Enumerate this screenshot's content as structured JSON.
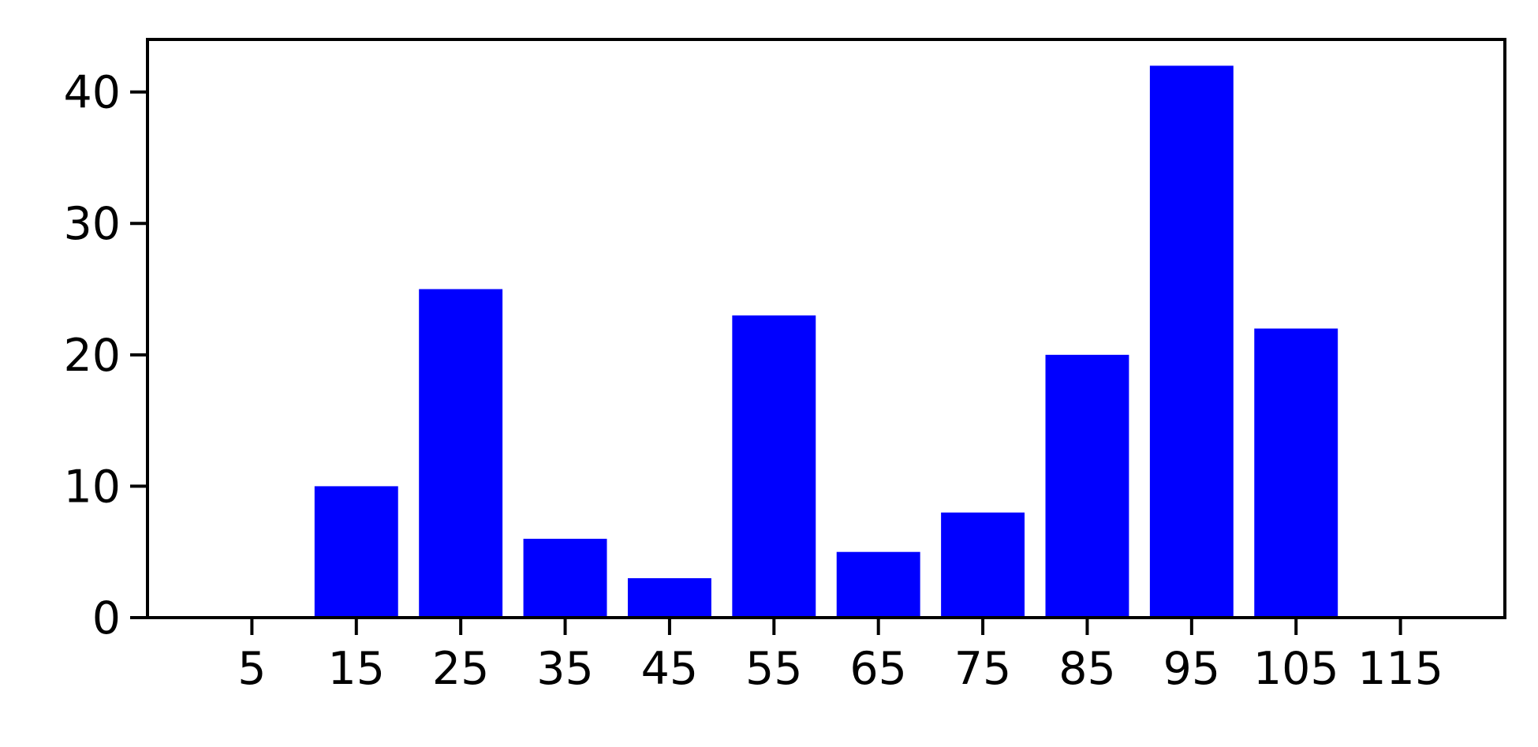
{
  "chart_data": {
    "type": "bar",
    "categories": [
      "5",
      "15",
      "25",
      "35",
      "45",
      "55",
      "65",
      "75",
      "85",
      "95",
      "105",
      "115"
    ],
    "values": [
      0,
      10,
      25,
      6,
      3,
      23,
      5,
      8,
      20,
      42,
      22,
      0
    ],
    "title": "",
    "xlabel": "",
    "ylabel": "",
    "ylim": [
      0,
      44
    ],
    "yticks": [
      0,
      10,
      20,
      30,
      40
    ],
    "grid": false,
    "bar_color": "#0000ff",
    "axis_color": "#000000",
    "background_color": "#ffffff"
  }
}
